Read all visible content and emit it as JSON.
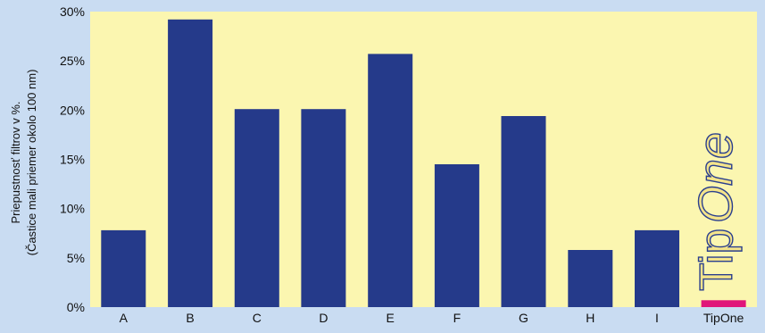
{
  "colors": {
    "background": "#c9dcf2",
    "plot_background": "#fbf6b0",
    "bar": "#253a8a",
    "highlight_bar": "#e0157a",
    "axis_text": "#111111",
    "logo_fill": "#f4e48a",
    "logo_stroke": "#2a3f8f"
  },
  "logo": {
    "text_tip": "Tip",
    "text_one": "One",
    "icon": "tipone-logo"
  },
  "chart_data": {
    "type": "bar",
    "categories": [
      "A",
      "B",
      "C",
      "D",
      "E",
      "F",
      "G",
      "H",
      "I",
      "TipOne"
    ],
    "values": [
      7.8,
      29.2,
      20.1,
      20.1,
      25.7,
      14.5,
      19.4,
      5.8,
      7.8,
      0.7
    ],
    "highlight_category": "TipOne",
    "title": "",
    "xlabel": "",
    "ylabel": "Priepustnosť filtrov v %.",
    "ylabel_line2": "(Častice mali priemer okolo 100 nm)",
    "ylim": [
      0,
      30
    ],
    "yticks": [
      0,
      5,
      10,
      15,
      20,
      25,
      30
    ],
    "ytick_labels": [
      "0%",
      "5%",
      "10%",
      "15%",
      "20%",
      "25%",
      "30%"
    ],
    "grid": false,
    "legend": "none"
  }
}
